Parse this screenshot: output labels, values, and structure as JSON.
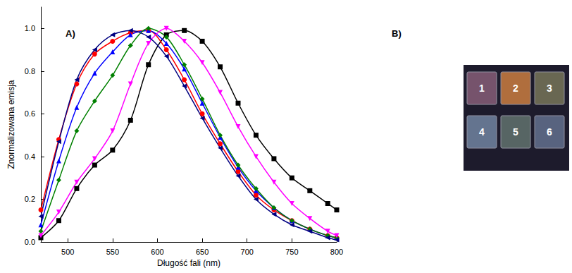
{
  "chart_data": {
    "type": "line",
    "title": "A)",
    "x_label": "Długość fali (nm)",
    "y_label": "Znormalizowana emisja",
    "x": [
      470,
      490,
      510,
      530,
      550,
      570,
      590,
      610,
      630,
      650,
      670,
      690,
      710,
      730,
      750,
      770,
      790,
      800
    ],
    "series": [
      {
        "color": "#000000",
        "marker": "square",
        "values": [
          0.02,
          0.1,
          0.25,
          0.36,
          0.43,
          0.57,
          0.83,
          0.97,
          0.99,
          0.94,
          0.82,
          0.65,
          0.5,
          0.39,
          0.3,
          0.24,
          0.18,
          0.15
        ]
      },
      {
        "color": "#ff0000",
        "marker": "circle",
        "values": [
          0.15,
          0.48,
          0.74,
          0.88,
          0.94,
          0.98,
          0.99,
          0.9,
          0.76,
          0.6,
          0.46,
          0.33,
          0.22,
          0.15,
          0.1,
          0.06,
          0.03,
          0.02
        ]
      },
      {
        "color": "#0000ff",
        "marker": "triangle",
        "values": [
          0.08,
          0.38,
          0.63,
          0.79,
          0.89,
          0.97,
          0.99,
          0.93,
          0.81,
          0.65,
          0.49,
          0.35,
          0.24,
          0.16,
          0.1,
          0.06,
          0.03,
          0.02
        ]
      },
      {
        "color": "#008000",
        "marker": "diamond",
        "values": [
          0.05,
          0.29,
          0.52,
          0.66,
          0.78,
          0.92,
          1.0,
          0.96,
          0.83,
          0.67,
          0.5,
          0.36,
          0.25,
          0.16,
          0.1,
          0.06,
          0.03,
          0.02
        ]
      },
      {
        "color": "#ff00ff",
        "marker": "triangle-down",
        "values": [
          0.03,
          0.14,
          0.28,
          0.39,
          0.52,
          0.74,
          0.93,
          1.0,
          0.94,
          0.84,
          0.7,
          0.54,
          0.4,
          0.28,
          0.18,
          0.11,
          0.05,
          0.03
        ]
      },
      {
        "color": "#000080",
        "marker": "triangle-left",
        "values": [
          0.12,
          0.47,
          0.76,
          0.9,
          0.97,
          0.99,
          0.96,
          0.87,
          0.73,
          0.58,
          0.44,
          0.31,
          0.2,
          0.13,
          0.08,
          0.05,
          0.02,
          0.01
        ]
      }
    ],
    "xlim": [
      470,
      800
    ],
    "xticks": [
      500,
      550,
      600,
      650,
      700,
      750,
      800
    ],
    "ylim": [
      0,
      1.1
    ],
    "yticks": [
      {
        "value": 0,
        "label": "0.0"
      },
      0.2,
      0.4,
      0.6,
      0.8,
      {
        "value": 1,
        "label": "1.0"
      }
    ],
    "grid": false
  },
  "panel_b": {
    "label": "B)",
    "samples": [
      {
        "label": "1",
        "color": "#7b5670"
      },
      {
        "label": "2",
        "color": "#b8733e"
      },
      {
        "label": "3",
        "color": "#6e6c55"
      },
      {
        "label": "4",
        "color": "#687995"
      },
      {
        "label": "5",
        "color": "#5b6a68"
      },
      {
        "label": "6",
        "color": "#5c6784"
      }
    ]
  }
}
